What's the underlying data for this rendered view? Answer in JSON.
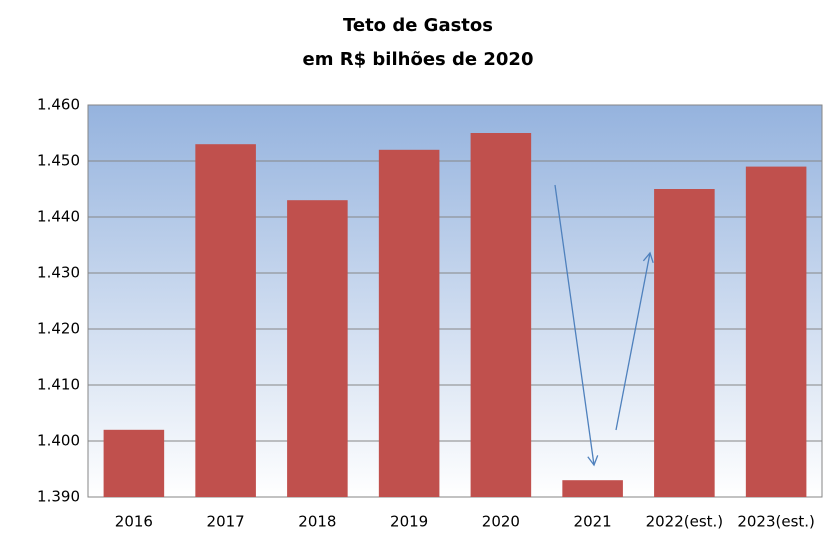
{
  "chart_data": {
    "type": "bar",
    "title": "Teto de Gastos",
    "subtitle": "em R$ bilhões de 2020",
    "categories": [
      "2016",
      "2017",
      "2018",
      "2019",
      "2020",
      "2021",
      "2022(est.)",
      "2023(est.)"
    ],
    "values": [
      1402,
      1453,
      1443,
      1452,
      1455,
      1393,
      1445,
      1449
    ],
    "color": "#c0504d",
    "ylim": [
      1390,
      1460
    ],
    "yticks": [
      {
        "value": 1390,
        "label": "1.390"
      },
      {
        "value": 1400,
        "label": "1.400"
      },
      {
        "value": 1410,
        "label": "1.410"
      },
      {
        "value": 1420,
        "label": "1.420"
      },
      {
        "value": 1430,
        "label": "1.430"
      },
      {
        "value": 1440,
        "label": "1.440"
      },
      {
        "value": 1450,
        "label": "1.450"
      },
      {
        "value": 1460,
        "label": "1.460"
      }
    ],
    "grid": true
  }
}
